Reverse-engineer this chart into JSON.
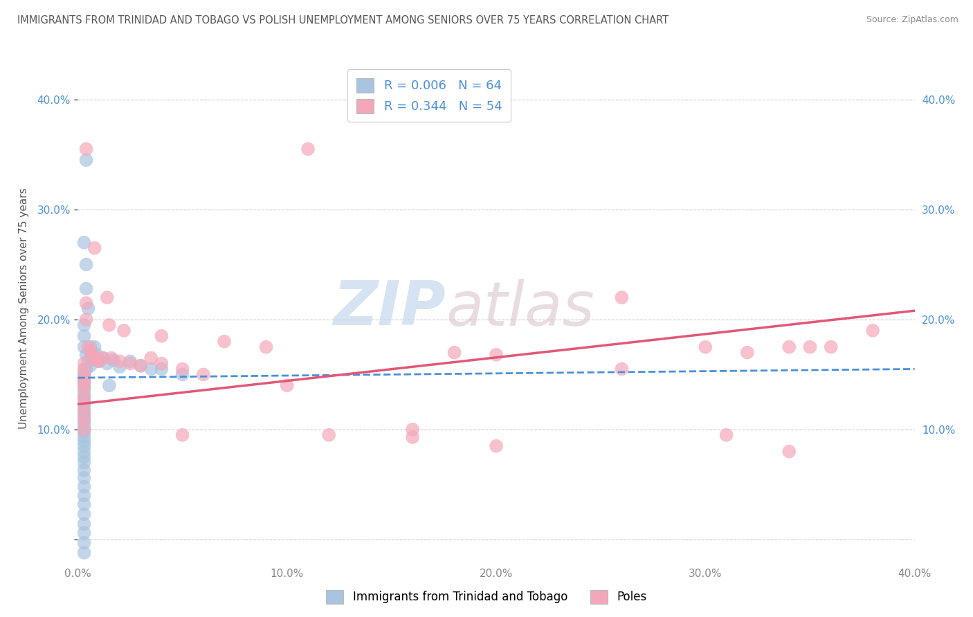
{
  "title": "IMMIGRANTS FROM TRINIDAD AND TOBAGO VS POLISH UNEMPLOYMENT AMONG SENIORS OVER 75 YEARS CORRELATION CHART",
  "source": "Source: ZipAtlas.com",
  "ylabel": "Unemployment Among Seniors over 75 years",
  "xlim": [
    0.0,
    0.4
  ],
  "ylim": [
    -0.02,
    0.44
  ],
  "yticks": [
    0.0,
    0.1,
    0.2,
    0.3,
    0.4
  ],
  "ytick_labels_left": [
    "",
    "10.0%",
    "20.0%",
    "30.0%",
    "40.0%"
  ],
  "ytick_labels_right": [
    "",
    "10.0%",
    "20.0%",
    "30.0%",
    "40.0%"
  ],
  "xticks": [
    0.0,
    0.1,
    0.2,
    0.3,
    0.4
  ],
  "xtick_labels": [
    "0.0%",
    "10.0%",
    "20.0%",
    "30.0%",
    "40.0%"
  ],
  "legend1_label": "Immigrants from Trinidad and Tobago",
  "legend2_label": "Poles",
  "r1": "0.006",
  "n1": "64",
  "r2": "0.344",
  "n2": "54",
  "blue_color": "#a8c4e0",
  "pink_color": "#f4a7b9",
  "blue_line_color": "#4a90d9",
  "pink_line_color": "#e05878",
  "title_color": "#555555",
  "legend_color": "#4a90d9",
  "tick_color": "#4a90d9",
  "background_color": "#ffffff",
  "watermark_zip": "ZIP",
  "watermark_atlas": "atlas",
  "grid_color": "#cccccc",
  "blue_dots": [
    [
      0.004,
      0.345
    ],
    [
      0.003,
      0.27
    ],
    [
      0.004,
      0.25
    ],
    [
      0.004,
      0.228
    ],
    [
      0.005,
      0.21
    ],
    [
      0.003,
      0.195
    ],
    [
      0.003,
      0.185
    ],
    [
      0.003,
      0.175
    ],
    [
      0.004,
      0.168
    ],
    [
      0.005,
      0.162
    ],
    [
      0.006,
      0.17
    ],
    [
      0.008,
      0.165
    ],
    [
      0.006,
      0.158
    ],
    [
      0.004,
      0.155
    ],
    [
      0.003,
      0.155
    ],
    [
      0.003,
      0.15
    ],
    [
      0.003,
      0.148
    ],
    [
      0.003,
      0.145
    ],
    [
      0.003,
      0.143
    ],
    [
      0.003,
      0.14
    ],
    [
      0.003,
      0.137
    ],
    [
      0.003,
      0.133
    ],
    [
      0.003,
      0.13
    ],
    [
      0.003,
      0.127
    ],
    [
      0.003,
      0.124
    ],
    [
      0.003,
      0.12
    ],
    [
      0.003,
      0.117
    ],
    [
      0.003,
      0.113
    ],
    [
      0.003,
      0.11
    ],
    [
      0.003,
      0.107
    ],
    [
      0.003,
      0.103
    ],
    [
      0.003,
      0.1
    ],
    [
      0.003,
      0.097
    ],
    [
      0.003,
      0.093
    ],
    [
      0.003,
      0.089
    ],
    [
      0.003,
      0.085
    ],
    [
      0.003,
      0.08
    ],
    [
      0.003,
      0.075
    ],
    [
      0.003,
      0.07
    ],
    [
      0.003,
      0.063
    ],
    [
      0.003,
      0.056
    ],
    [
      0.003,
      0.048
    ],
    [
      0.003,
      0.04
    ],
    [
      0.003,
      0.032
    ],
    [
      0.003,
      0.023
    ],
    [
      0.003,
      0.014
    ],
    [
      0.003,
      0.006
    ],
    [
      0.003,
      -0.003
    ],
    [
      0.003,
      -0.012
    ],
    [
      0.006,
      0.175
    ],
    [
      0.007,
      0.165
    ],
    [
      0.008,
      0.175
    ],
    [
      0.009,
      0.168
    ],
    [
      0.01,
      0.162
    ],
    [
      0.012,
      0.165
    ],
    [
      0.014,
      0.16
    ],
    [
      0.017,
      0.163
    ],
    [
      0.02,
      0.157
    ],
    [
      0.025,
      0.162
    ],
    [
      0.03,
      0.158
    ],
    [
      0.035,
      0.155
    ],
    [
      0.04,
      0.155
    ],
    [
      0.05,
      0.15
    ],
    [
      0.015,
      0.14
    ]
  ],
  "pink_dots": [
    [
      0.004,
      0.355
    ],
    [
      0.11,
      0.355
    ],
    [
      0.008,
      0.265
    ],
    [
      0.014,
      0.22
    ],
    [
      0.004,
      0.215
    ],
    [
      0.004,
      0.2
    ],
    [
      0.015,
      0.195
    ],
    [
      0.022,
      0.19
    ],
    [
      0.04,
      0.185
    ],
    [
      0.07,
      0.18
    ],
    [
      0.09,
      0.175
    ],
    [
      0.18,
      0.17
    ],
    [
      0.2,
      0.168
    ],
    [
      0.26,
      0.22
    ],
    [
      0.3,
      0.175
    ],
    [
      0.32,
      0.17
    ],
    [
      0.34,
      0.175
    ],
    [
      0.35,
      0.175
    ],
    [
      0.36,
      0.175
    ],
    [
      0.38,
      0.19
    ],
    [
      0.005,
      0.175
    ],
    [
      0.006,
      0.172
    ],
    [
      0.007,
      0.168
    ],
    [
      0.008,
      0.165
    ],
    [
      0.009,
      0.163
    ],
    [
      0.01,
      0.162
    ],
    [
      0.012,
      0.165
    ],
    [
      0.016,
      0.165
    ],
    [
      0.02,
      0.162
    ],
    [
      0.025,
      0.16
    ],
    [
      0.03,
      0.158
    ],
    [
      0.035,
      0.165
    ],
    [
      0.04,
      0.16
    ],
    [
      0.05,
      0.155
    ],
    [
      0.06,
      0.15
    ],
    [
      0.003,
      0.16
    ],
    [
      0.003,
      0.153
    ],
    [
      0.003,
      0.148
    ],
    [
      0.003,
      0.143
    ],
    [
      0.003,
      0.138
    ],
    [
      0.003,
      0.13
    ],
    [
      0.003,
      0.123
    ],
    [
      0.003,
      0.115
    ],
    [
      0.003,
      0.108
    ],
    [
      0.003,
      0.1
    ],
    [
      0.05,
      0.095
    ],
    [
      0.1,
      0.14
    ],
    [
      0.16,
      0.1
    ],
    [
      0.26,
      0.155
    ],
    [
      0.31,
      0.095
    ],
    [
      0.34,
      0.08
    ],
    [
      0.2,
      0.085
    ],
    [
      0.12,
      0.095
    ],
    [
      0.16,
      0.093
    ]
  ],
  "blue_line_x": [
    0.0,
    0.4
  ],
  "blue_line_y": [
    0.147,
    0.155
  ],
  "pink_line_x": [
    0.0,
    0.4
  ],
  "pink_line_y": [
    0.123,
    0.208
  ]
}
